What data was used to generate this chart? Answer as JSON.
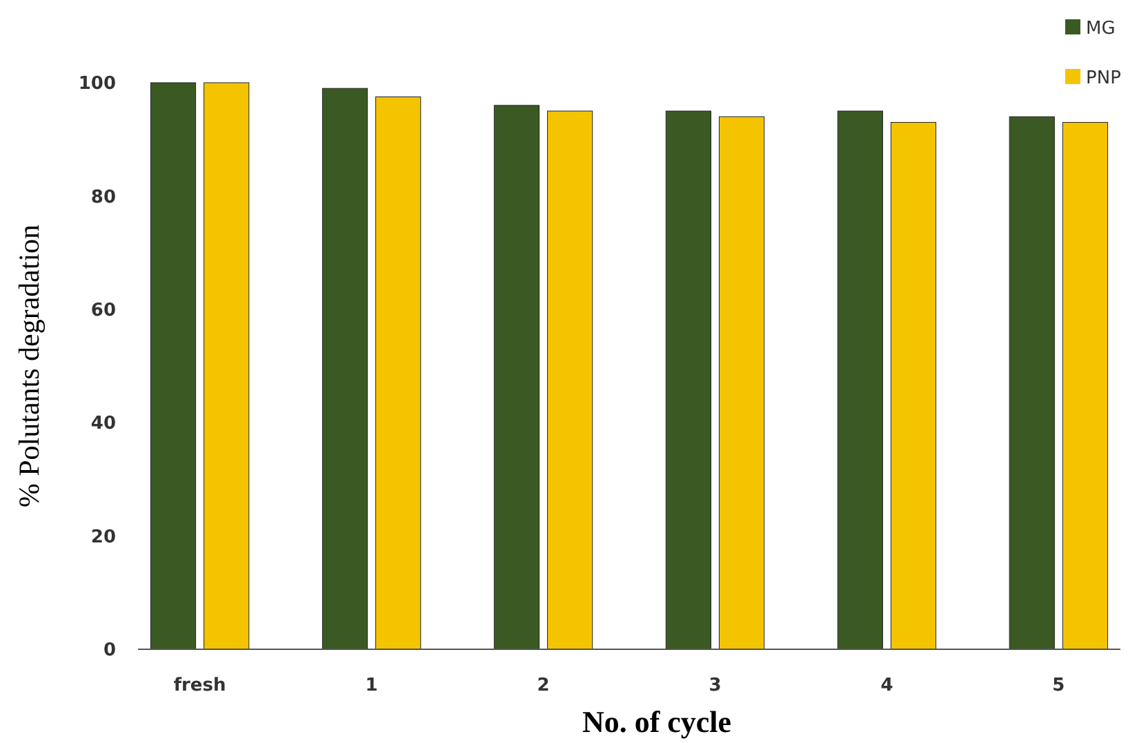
{
  "chart_data": {
    "type": "bar",
    "xlabel": "No. of cycle",
    "ylabel": "% Polutants degradation",
    "categories": [
      "fresh",
      "1",
      "2",
      "3",
      "4",
      "5"
    ],
    "series": [
      {
        "name": "MG",
        "color": "#3b5a23",
        "values": [
          100,
          99,
          96,
          95,
          95,
          94
        ]
      },
      {
        "name": "PNP",
        "color": "#f5c400",
        "values": [
          100,
          97.5,
          95,
          94,
          93,
          93
        ]
      }
    ],
    "ylim": [
      0,
      100
    ],
    "yticks": [
      0,
      20,
      40,
      60,
      80,
      100
    ],
    "grid": false,
    "legend": "top right"
  }
}
